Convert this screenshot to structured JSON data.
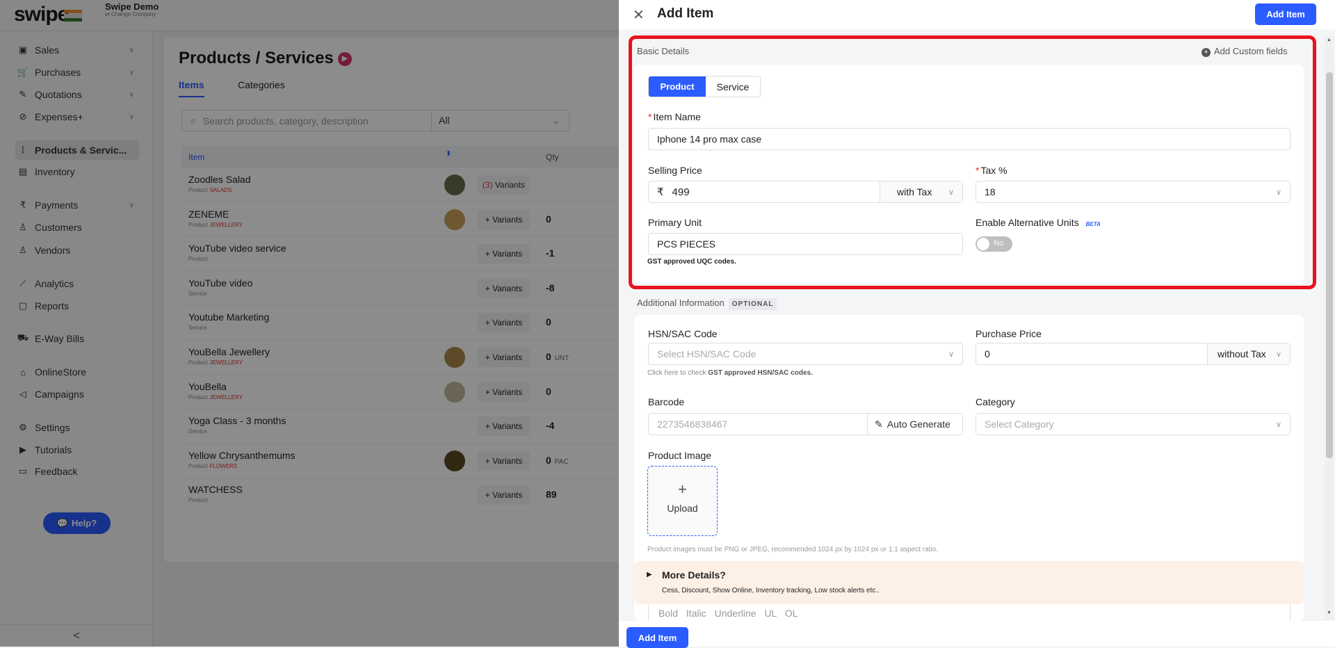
{
  "header": {
    "logo": "swipe",
    "company": "Swipe Demo",
    "change_company": "⇄ Change Company"
  },
  "sidebar": {
    "items": [
      {
        "label": "Sales",
        "icon": "cash-icon",
        "glyph": "▣",
        "chev": true
      },
      {
        "label": "Purchases",
        "icon": "cart-icon",
        "glyph": "🛒",
        "chev": true
      },
      {
        "label": "Quotations",
        "icon": "pencil-icon",
        "glyph": "✎",
        "chev": true
      },
      {
        "label": "Expenses+",
        "icon": "tag-icon",
        "glyph": "⊘",
        "chev": true
      },
      {
        "label": "Products & Servic...",
        "icon": "barcode-icon",
        "glyph": "⦙",
        "chev": false,
        "active": true
      },
      {
        "label": "Inventory",
        "icon": "inventory-icon",
        "glyph": "▤",
        "chev": false
      },
      {
        "label": "Payments",
        "icon": "rupee-icon",
        "glyph": "₹",
        "chev": true
      },
      {
        "label": "Customers",
        "icon": "user-icon",
        "glyph": "♙",
        "chev": false
      },
      {
        "label": "Vendors",
        "icon": "users-icon",
        "glyph": "♙",
        "chev": false
      },
      {
        "label": "Analytics",
        "icon": "chart-icon",
        "glyph": "⟋",
        "chev": false
      },
      {
        "label": "Reports",
        "icon": "report-icon",
        "glyph": "▢",
        "chev": false
      },
      {
        "label": "E-Way Bills",
        "icon": "truck-icon",
        "glyph": "⛟",
        "chev": false
      },
      {
        "label": "OnlineStore",
        "icon": "store-icon",
        "glyph": "⌂",
        "chev": false
      },
      {
        "label": "Campaigns",
        "icon": "megaphone-icon",
        "glyph": "◁",
        "chev": false
      },
      {
        "label": "Settings",
        "icon": "gear-icon",
        "glyph": "⚙",
        "chev": false
      },
      {
        "label": "Tutorials",
        "icon": "youtube-icon",
        "glyph": "▶",
        "chev": false
      },
      {
        "label": "Feedback",
        "icon": "message-icon",
        "glyph": "▭",
        "chev": false
      }
    ],
    "help": "Help?",
    "collapse": "<"
  },
  "main": {
    "title": "Products / Services",
    "tabs": [
      "Items",
      "Categories"
    ],
    "search_placeholder": "Search products, category, description",
    "filter": "All",
    "columns": [
      "Item",
      "Qty"
    ],
    "rows": [
      {
        "name": "Zoodles Salad",
        "type": "Product",
        "category": "SALADS",
        "variants": "(3) Variants",
        "qty": "",
        "unit": "",
        "img": "#6b6a4a"
      },
      {
        "name": "ZENEME",
        "type": "Product",
        "category": "JEWELLERY",
        "variants": "+ Variants",
        "qty": "0",
        "unit": "",
        "img": "#c9a15a"
      },
      {
        "name": "YouTube video service",
        "type": "Product",
        "category": "",
        "variants": "+ Variants",
        "qty": "-1",
        "unit": ""
      },
      {
        "name": "YouTube video",
        "type": "Service",
        "category": "",
        "variants": "+ Variants",
        "qty": "-8",
        "unit": ""
      },
      {
        "name": "Youtube Marketing",
        "type": "Service",
        "category": "",
        "variants": "+ Variants",
        "qty": "0",
        "unit": ""
      },
      {
        "name": "YouBella Jewellery",
        "type": "Product",
        "category": "JEWELLERY",
        "variants": "+ Variants",
        "qty": "0",
        "unit": "UNT",
        "img": "#a8884a"
      },
      {
        "name": "YouBella",
        "type": "Product",
        "category": "JEWELLERY",
        "variants": "+ Variants",
        "qty": "0",
        "unit": "",
        "img": "#c2b89a"
      },
      {
        "name": "Yoga Class - 3 months",
        "type": "Service",
        "category": "",
        "variants": "+ Variants",
        "qty": "-4",
        "unit": ""
      },
      {
        "name": "Yellow Chrysanthemums",
        "type": "Product",
        "category": "FLOWERS",
        "variants": "+ Variants",
        "qty": "0",
        "unit": "PAC",
        "img": "#5a4a20"
      },
      {
        "name": "WATCHESS",
        "type": "Product",
        "category": "",
        "variants": "+ Variants",
        "qty": "89",
        "unit": ""
      }
    ]
  },
  "drawer": {
    "title": "Add Item",
    "add_button": "Add Item",
    "footer_button": "Add Item",
    "basic": {
      "title": "Basic Details",
      "custom_fields": "Add Custom fields",
      "types": [
        "Product",
        "Service"
      ],
      "selected_type": "Product",
      "item_name_label": "Item Name",
      "item_name": "Iphone 14 pro max case",
      "selling_price_label": "Selling Price",
      "currency": "₹",
      "selling_price": "499",
      "price_tax_mode": "with Tax",
      "tax_label": "Tax %",
      "tax": "18",
      "unit_label": "Primary Unit",
      "unit": "PCS PIECES",
      "unit_help": "GST approved UQC codes.",
      "alt_units_label": "Enable Alternative Units",
      "beta": "BETA",
      "alt_units_toggle": "No"
    },
    "additional": {
      "title": "Additional Information",
      "badge": "OPTIONAL",
      "hsn_label": "HSN/SAC Code",
      "hsn_placeholder": "Select HSN/SAC Code",
      "hsn_help_pre": "Click here to check ",
      "hsn_help_bold": "GST approved HSN/SAC codes.",
      "purchase_label": "Purchase Price",
      "purchase_price": "0",
      "purchase_tax_mode": "without Tax",
      "barcode_label": "Barcode",
      "barcode_placeholder": "2273546838467",
      "auto_generate": "Auto Generate",
      "category_label": "Category",
      "category_placeholder": "Select Category",
      "image_label": "Product Image",
      "upload": "Upload",
      "image_note": "Product images must be PNG or JPEG, recommended 1024 px by 1024 px or 1:1 aspect ratio.",
      "more_title": "More Details?",
      "more_sub": "Cess, Discount, Show Online, Inventory tracking, Low stock alerts etc..",
      "toolbar": [
        "Bold",
        "Italic",
        "Underline",
        "UL",
        "OL"
      ]
    }
  },
  "colors": {
    "primary": "#2b5cff",
    "highlight": "#e8141c",
    "required": "#e03131",
    "more_bg": "#fdf0e7"
  }
}
